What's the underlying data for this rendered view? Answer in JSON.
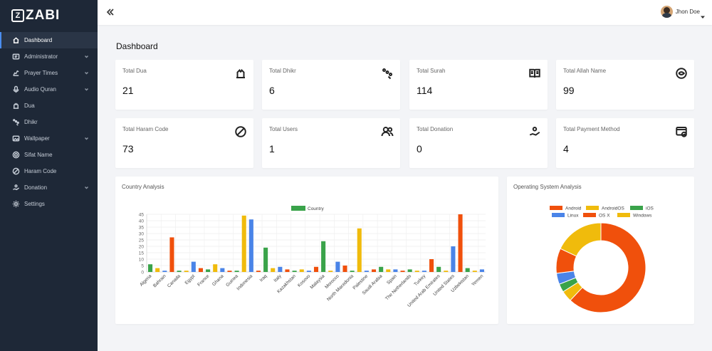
{
  "app": {
    "logo_text": "ZABI",
    "logo_mark": "Z"
  },
  "sidebar": {
    "items": [
      {
        "label": "Dashboard",
        "icon": "home-icon",
        "active": true,
        "has_children": false
      },
      {
        "label": "Administrator",
        "icon": "admin-icon",
        "active": false,
        "has_children": true
      },
      {
        "label": "Prayer Times",
        "icon": "prayer-icon",
        "active": false,
        "has_children": true
      },
      {
        "label": "Audio Quran",
        "icon": "microphone-icon",
        "active": false,
        "has_children": true
      },
      {
        "label": "Dua",
        "icon": "dua-icon",
        "active": false,
        "has_children": false
      },
      {
        "label": "Dhikr",
        "icon": "dhikr-icon",
        "active": false,
        "has_children": false
      },
      {
        "label": "Wallpaper",
        "icon": "image-icon",
        "active": false,
        "has_children": true
      },
      {
        "label": "Sifat Name",
        "icon": "sifat-icon",
        "active": false,
        "has_children": false
      },
      {
        "label": "Haram Code",
        "icon": "ban-icon",
        "active": false,
        "has_children": false
      },
      {
        "label": "Donation",
        "icon": "donation-icon",
        "active": false,
        "has_children": true
      },
      {
        "label": "Settings",
        "icon": "gear-icon",
        "active": false,
        "has_children": false
      }
    ]
  },
  "header": {
    "user_name": "Jhon Doe"
  },
  "main": {
    "title": "Dashboard",
    "cards": [
      {
        "label": "Total Dua",
        "value": "21",
        "icon": "dua-icon"
      },
      {
        "label": "Total Dhikr",
        "value": "6",
        "icon": "dhikr-icon"
      },
      {
        "label": "Total Surah",
        "value": "114",
        "icon": "book-icon"
      },
      {
        "label": "Total Allah Name",
        "value": "99",
        "icon": "allah-name-icon"
      },
      {
        "label": "Total Haram Code",
        "value": "73",
        "icon": "ban-icon"
      },
      {
        "label": "Total Users",
        "value": "1",
        "icon": "users-icon"
      },
      {
        "label": "Total Donation",
        "value": "0",
        "icon": "donation-icon"
      },
      {
        "label": "Total Payment Method",
        "value": "4",
        "icon": "payment-icon"
      }
    ],
    "country_panel_title": "Country Analysis",
    "os_panel_title": "Operating System Analysis"
  },
  "colors": {
    "sidebar_bg": "#1e2837",
    "accent": "#4a8df0",
    "green": "#3aa34a",
    "yellow": "#f0bb0c",
    "blue": "#4a84e8",
    "orange": "#f0500c"
  },
  "chart_data": [
    {
      "type": "bar",
      "legend": [
        "Country"
      ],
      "legend_position": "top",
      "ylim": [
        0,
        45
      ],
      "yticks": [
        0,
        5,
        10,
        15,
        20,
        25,
        30,
        35,
        40,
        45
      ],
      "grid": true,
      "categories": [
        "Algeria",
        "",
        "Bahrain",
        "",
        "Canada",
        "",
        "Egypt",
        "",
        "France",
        "",
        "Ghana",
        "",
        "Guinea",
        "",
        "Indonesia",
        "",
        "Iraq",
        "",
        "Italy",
        "",
        "Kazakhstan",
        "",
        "Kosovo",
        "",
        "Malaysia",
        "",
        "Morocco",
        "",
        "North Macedonia",
        "",
        "Palestine",
        "",
        "Saudi Arabia",
        "",
        "Spain",
        "",
        "The Netherlands",
        "",
        "Turkey",
        "",
        "United Arab Emirates",
        "",
        "United States",
        "",
        "Uzbekistan",
        "",
        "Yemen"
      ],
      "values": [
        6,
        3,
        1,
        27,
        1,
        1,
        8,
        3,
        2,
        6,
        3,
        1,
        1,
        44,
        41,
        1,
        19,
        3,
        4,
        2,
        1,
        2,
        1,
        4,
        24,
        1,
        8,
        5,
        1,
        34,
        1,
        2,
        4,
        2,
        2,
        1,
        2,
        1,
        1,
        10,
        4,
        1,
        20,
        45,
        3,
        1,
        2
      ],
      "bar_colors": [
        "#3aa34a",
        "#f0bb0c",
        "#4a84e8",
        "#f0500c"
      ]
    },
    {
      "type": "pie",
      "donut": true,
      "legend_position": "top",
      "labels": [
        "Android",
        "AndroidOS",
        "iOS",
        "Linux",
        "OS X",
        "Windows"
      ],
      "values": [
        62,
        4,
        3,
        4,
        9,
        18
      ],
      "colors": [
        "#f0500c",
        "#f0bb0c",
        "#3aa34a",
        "#4a84e8",
        "#f0500c",
        "#f0bb0c"
      ]
    }
  ]
}
